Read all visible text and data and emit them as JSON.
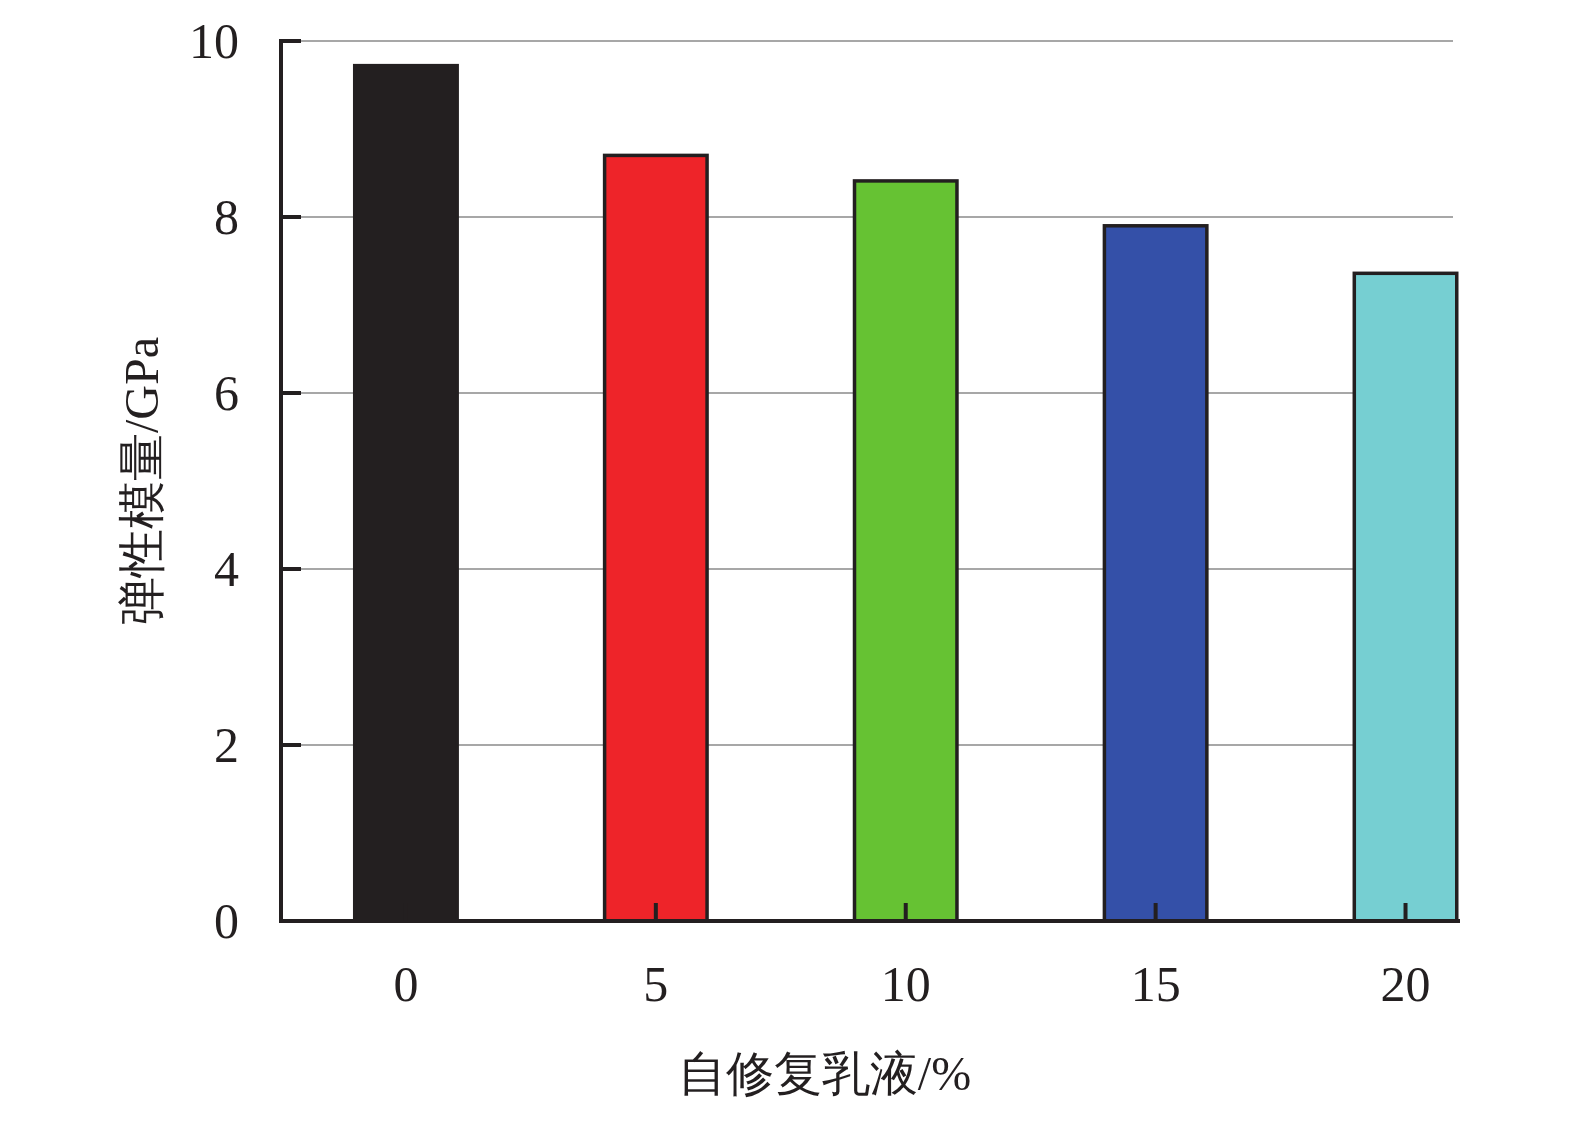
{
  "chart_data": {
    "type": "bar",
    "xlabel": "自修复乳液/%",
    "ylabel": "弹性模量/GPa",
    "categories": [
      "0",
      "5",
      "10",
      "15",
      "20"
    ],
    "values": [
      9.72,
      8.7,
      8.41,
      7.9,
      7.36
    ],
    "colors": [
      "#231f20",
      "#ee2429",
      "#66c233",
      "#3450a8",
      "#76cfd2"
    ],
    "ylim": [
      0,
      10
    ],
    "yticks": [
      0,
      2,
      4,
      6,
      8,
      10
    ],
    "grid": "y"
  }
}
